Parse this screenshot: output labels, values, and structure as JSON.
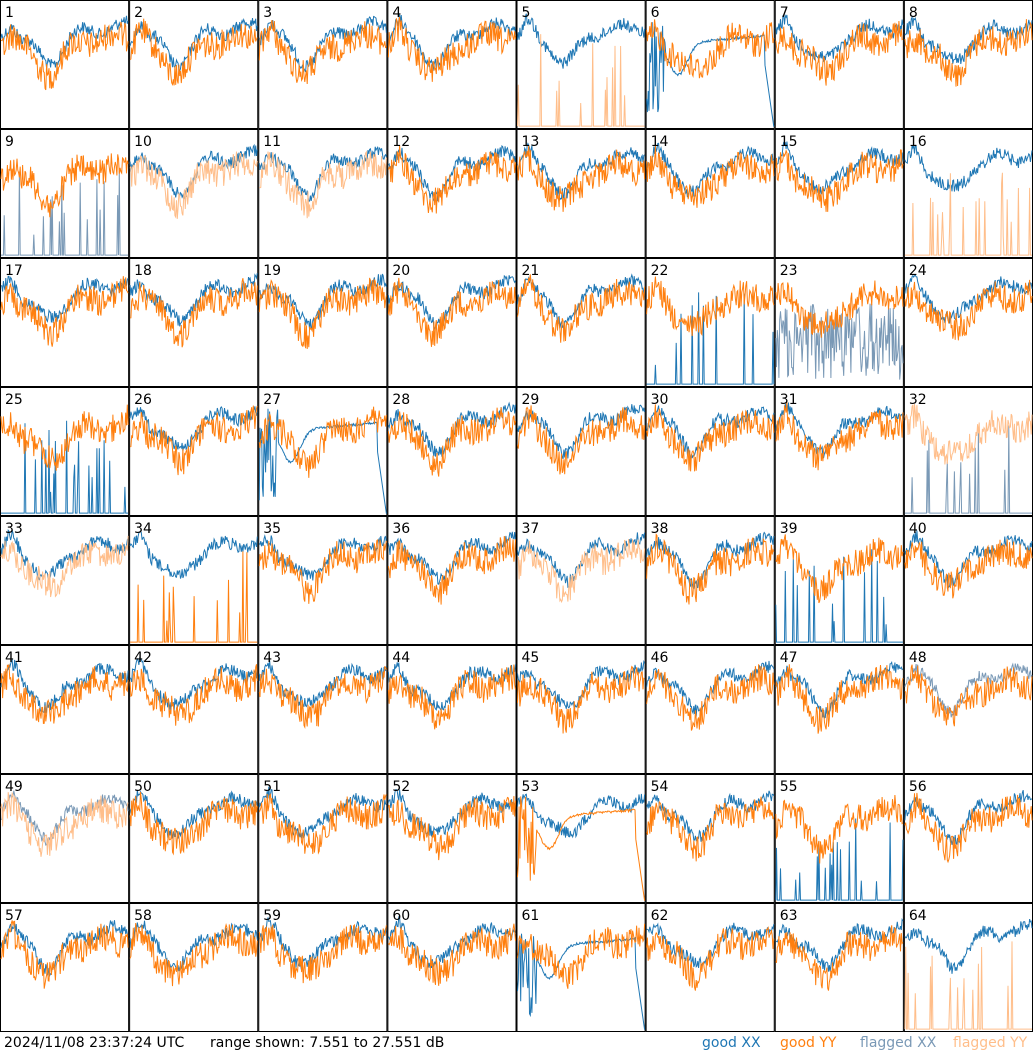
{
  "footer": {
    "timestamp": "2024/11/08 23:37:24 UTC",
    "range_text": "range shown: 7.551 to 27.551 dB"
  },
  "legend": {
    "good_xx": "good XX",
    "good_yy": "good YY",
    "flagged_xx": "flagged XX",
    "flagged_yy": "flagged YY"
  },
  "colors": {
    "good_xx": "#1f77b4",
    "good_yy": "#ff7f0e",
    "flagged_xx": "#7a99b6",
    "flagged_yy": "#ffbe8a"
  },
  "chart_data": {
    "type": "line",
    "grid": "8x8 small multiples",
    "y_range_db": [
      7.551,
      27.551
    ],
    "panels": [
      {
        "id": "1",
        "xx": "good",
        "yy": "good",
        "xx_shape": "normal",
        "yy_shape": "normal"
      },
      {
        "id": "2",
        "xx": "good",
        "yy": "good",
        "xx_shape": "normal",
        "yy_shape": "normal"
      },
      {
        "id": "3",
        "xx": "good",
        "yy": "good",
        "xx_shape": "normal",
        "yy_shape": "normal"
      },
      {
        "id": "4",
        "xx": "good",
        "yy": "good",
        "xx_shape": "normal",
        "yy_shape": "normal"
      },
      {
        "id": "5",
        "xx": "good",
        "yy": "flagged",
        "xx_shape": "normal",
        "yy_shape": "spikes"
      },
      {
        "id": "6",
        "xx": "good",
        "yy": "good",
        "xx_shape": "bowl",
        "yy_shape": "normal"
      },
      {
        "id": "7",
        "xx": "good",
        "yy": "good",
        "xx_shape": "normal",
        "yy_shape": "normal"
      },
      {
        "id": "8",
        "xx": "good",
        "yy": "good",
        "xx_shape": "normal",
        "yy_shape": "normal"
      },
      {
        "id": "9",
        "xx": "flagged",
        "yy": "good",
        "xx_shape": "spikes",
        "yy_shape": "normal"
      },
      {
        "id": "10",
        "xx": "good",
        "yy": "flagged",
        "xx_shape": "normal",
        "yy_shape": "normal"
      },
      {
        "id": "11",
        "xx": "good",
        "yy": "flagged",
        "xx_shape": "normal",
        "yy_shape": "normal"
      },
      {
        "id": "12",
        "xx": "good",
        "yy": "good",
        "xx_shape": "normal",
        "yy_shape": "normal"
      },
      {
        "id": "13",
        "xx": "good",
        "yy": "good",
        "xx_shape": "normal",
        "yy_shape": "normal"
      },
      {
        "id": "14",
        "xx": "good",
        "yy": "good",
        "xx_shape": "normal",
        "yy_shape": "normal"
      },
      {
        "id": "15",
        "xx": "good",
        "yy": "good",
        "xx_shape": "normal",
        "yy_shape": "normal"
      },
      {
        "id": "16",
        "xx": "good",
        "yy": "flagged",
        "xx_shape": "normal",
        "yy_shape": "spikes"
      },
      {
        "id": "17",
        "xx": "good",
        "yy": "good",
        "xx_shape": "normal",
        "yy_shape": "normal"
      },
      {
        "id": "18",
        "xx": "good",
        "yy": "good",
        "xx_shape": "normal",
        "yy_shape": "normal"
      },
      {
        "id": "19",
        "xx": "good",
        "yy": "good",
        "xx_shape": "normal",
        "yy_shape": "normal"
      },
      {
        "id": "20",
        "xx": "good",
        "yy": "good",
        "xx_shape": "normal",
        "yy_shape": "normal"
      },
      {
        "id": "21",
        "xx": "good",
        "yy": "good",
        "xx_shape": "normal",
        "yy_shape": "normal"
      },
      {
        "id": "22",
        "xx": "good",
        "yy": "good",
        "xx_shape": "spikes",
        "yy_shape": "normal"
      },
      {
        "id": "23",
        "xx": "flagged",
        "yy": "good",
        "xx_shape": "noisy",
        "yy_shape": "normal"
      },
      {
        "id": "24",
        "xx": "good",
        "yy": "good",
        "xx_shape": "normal",
        "yy_shape": "normal"
      },
      {
        "id": "25",
        "xx": "good",
        "yy": "good",
        "xx_shape": "spikes",
        "yy_shape": "normal"
      },
      {
        "id": "26",
        "xx": "good",
        "yy": "good",
        "xx_shape": "normal",
        "yy_shape": "normal"
      },
      {
        "id": "27",
        "xx": "good",
        "yy": "good",
        "xx_shape": "bowl",
        "yy_shape": "normal"
      },
      {
        "id": "28",
        "xx": "good",
        "yy": "good",
        "xx_shape": "normal",
        "yy_shape": "normal"
      },
      {
        "id": "29",
        "xx": "good",
        "yy": "good",
        "xx_shape": "normal",
        "yy_shape": "normal"
      },
      {
        "id": "30",
        "xx": "good",
        "yy": "good",
        "xx_shape": "normal",
        "yy_shape": "normal"
      },
      {
        "id": "31",
        "xx": "good",
        "yy": "good",
        "xx_shape": "normal",
        "yy_shape": "normal"
      },
      {
        "id": "32",
        "xx": "flagged",
        "yy": "flagged",
        "xx_shape": "spikes",
        "yy_shape": "normal"
      },
      {
        "id": "33",
        "xx": "good",
        "yy": "flagged",
        "xx_shape": "normal",
        "yy_shape": "normal"
      },
      {
        "id": "34",
        "xx": "good",
        "yy": "good",
        "xx_shape": "normal",
        "yy_shape": "spikes"
      },
      {
        "id": "35",
        "xx": "good",
        "yy": "good",
        "xx_shape": "normal",
        "yy_shape": "normal"
      },
      {
        "id": "36",
        "xx": "good",
        "yy": "good",
        "xx_shape": "normal",
        "yy_shape": "normal"
      },
      {
        "id": "37",
        "xx": "good",
        "yy": "flagged",
        "xx_shape": "normal",
        "yy_shape": "normal"
      },
      {
        "id": "38",
        "xx": "good",
        "yy": "good",
        "xx_shape": "normal",
        "yy_shape": "normal"
      },
      {
        "id": "39",
        "xx": "good",
        "yy": "good",
        "xx_shape": "spikes",
        "yy_shape": "normal"
      },
      {
        "id": "40",
        "xx": "good",
        "yy": "good",
        "xx_shape": "normal",
        "yy_shape": "normal"
      },
      {
        "id": "41",
        "xx": "good",
        "yy": "good",
        "xx_shape": "normal",
        "yy_shape": "normal"
      },
      {
        "id": "42",
        "xx": "good",
        "yy": "good",
        "xx_shape": "normal",
        "yy_shape": "normal"
      },
      {
        "id": "43",
        "xx": "good",
        "yy": "good",
        "xx_shape": "normal",
        "yy_shape": "normal"
      },
      {
        "id": "44",
        "xx": "good",
        "yy": "good",
        "xx_shape": "normal",
        "yy_shape": "normal"
      },
      {
        "id": "45",
        "xx": "good",
        "yy": "good",
        "xx_shape": "normal",
        "yy_shape": "normal"
      },
      {
        "id": "46",
        "xx": "good",
        "yy": "good",
        "xx_shape": "normal",
        "yy_shape": "normal"
      },
      {
        "id": "47",
        "xx": "good",
        "yy": "good",
        "xx_shape": "normal",
        "yy_shape": "normal"
      },
      {
        "id": "48",
        "xx": "flagged",
        "yy": "good",
        "xx_shape": "normal",
        "yy_shape": "normal"
      },
      {
        "id": "49",
        "xx": "flagged",
        "yy": "flagged",
        "xx_shape": "normal",
        "yy_shape": "normal"
      },
      {
        "id": "50",
        "xx": "good",
        "yy": "good",
        "xx_shape": "normal",
        "yy_shape": "normal"
      },
      {
        "id": "51",
        "xx": "good",
        "yy": "good",
        "xx_shape": "normal",
        "yy_shape": "normal"
      },
      {
        "id": "52",
        "xx": "good",
        "yy": "good",
        "xx_shape": "normal",
        "yy_shape": "normal"
      },
      {
        "id": "53",
        "xx": "good",
        "yy": "good",
        "xx_shape": "normal",
        "yy_shape": "bowl"
      },
      {
        "id": "54",
        "xx": "good",
        "yy": "good",
        "xx_shape": "normal",
        "yy_shape": "normal"
      },
      {
        "id": "55",
        "xx": "good",
        "yy": "good",
        "xx_shape": "spikes",
        "yy_shape": "normal"
      },
      {
        "id": "56",
        "xx": "good",
        "yy": "good",
        "xx_shape": "normal",
        "yy_shape": "normal"
      },
      {
        "id": "57",
        "xx": "good",
        "yy": "good",
        "xx_shape": "normal",
        "yy_shape": "normal"
      },
      {
        "id": "58",
        "xx": "good",
        "yy": "good",
        "xx_shape": "normal",
        "yy_shape": "normal"
      },
      {
        "id": "59",
        "xx": "good",
        "yy": "good",
        "xx_shape": "normal",
        "yy_shape": "normal"
      },
      {
        "id": "60",
        "xx": "good",
        "yy": "good",
        "xx_shape": "normal",
        "yy_shape": "normal"
      },
      {
        "id": "61",
        "xx": "good",
        "yy": "good",
        "xx_shape": "bowl",
        "yy_shape": "normal"
      },
      {
        "id": "62",
        "xx": "good",
        "yy": "good",
        "xx_shape": "normal",
        "yy_shape": "normal"
      },
      {
        "id": "63",
        "xx": "good",
        "yy": "good",
        "xx_shape": "normal",
        "yy_shape": "normal"
      },
      {
        "id": "64",
        "xx": "good",
        "yy": "flagged",
        "xx_shape": "normal",
        "yy_shape": "spikes"
      }
    ]
  }
}
